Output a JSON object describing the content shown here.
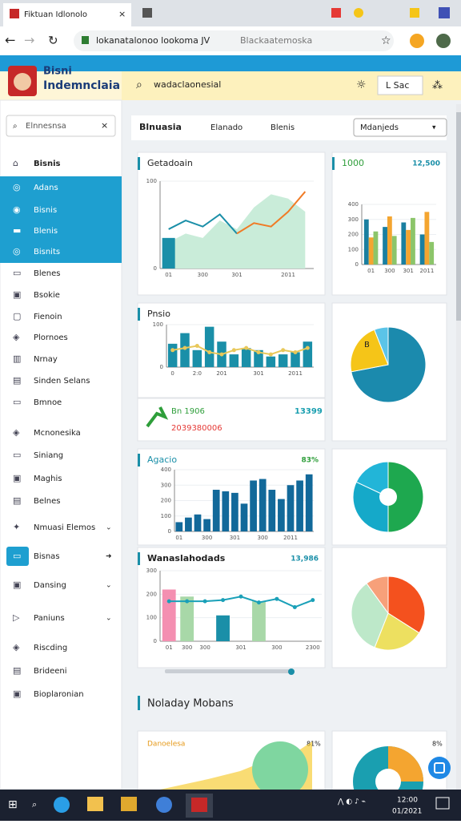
{
  "browser": {
    "tab_title": "Fiktuan Idlonolo",
    "url": "lokanatalonoo lookoma JV",
    "search": "Blackaatemoska"
  },
  "header": {
    "brand_top": "Bisni",
    "brand": "Indemnclaia",
    "search": "wadaclaonesial",
    "button": "L Sac"
  },
  "sidebar": {
    "search": "Elnnesnsa",
    "items": [
      "Bisnis",
      "Adans",
      "Bisnis",
      "Blenis",
      "Bisnits",
      "Blenes",
      "Bsokie",
      "Fienoin",
      "Plornoes",
      "Nrnay",
      "Sinden Selans",
      "Bmnoe",
      "Mcnonesika",
      "Siniang",
      "Maghis",
      "Belnes",
      "Nmuasi Elemos",
      "Bisnas",
      "Dansing",
      "Paniuns",
      "Riscding",
      "Brideeni",
      "Bioplaronian"
    ]
  },
  "tabs": [
    "Blnuasia",
    "Elanado",
    "Blenis"
  ],
  "dropdown": "Mdanjeds",
  "stats": {
    "label": "Bn 1906",
    "value": "13399",
    "sub": "2039380006"
  },
  "section_title": "Noladay Mobans",
  "bottom": {
    "title": "Danoelesa",
    "value": "81%",
    "value2": "8%"
  },
  "taskbar": {
    "time": "12:00",
    "date": "01/2021"
  },
  "chart_data": [
    {
      "type": "line",
      "title": "Getadoain",
      "categories": [
        "01",
        null,
        "300",
        null,
        "301",
        null,
        null,
        "2011",
        null
      ],
      "ylim": [
        0,
        100
      ],
      "yticks": [
        0,
        100
      ],
      "series": [
        {
          "type": "area",
          "color": "#c9ecd9",
          "values": [
            30,
            40,
            35,
            55,
            45,
            70,
            85,
            80,
            65
          ]
        },
        {
          "type": "bar",
          "color": "#1a8fa8",
          "values": [
            35,
            null,
            null,
            null,
            null,
            null,
            null,
            null,
            null
          ]
        },
        {
          "type": "line",
          "color": "#1a8fa8",
          "values": [
            45,
            55,
            48,
            62,
            40,
            null,
            null,
            null,
            null
          ]
        },
        {
          "type": "line",
          "color": "#f07b26",
          "values": [
            null,
            null,
            null,
            null,
            40,
            52,
            48,
            65,
            88
          ]
        }
      ]
    },
    {
      "type": "bar",
      "title": "1000",
      "value_label": "12,500",
      "categories": [
        "01",
        "300",
        "301",
        "2011"
      ],
      "ylim": [
        0,
        400
      ],
      "yticks": [
        0,
        100,
        200,
        300,
        400
      ],
      "series": [
        {
          "color": "#1a7fa0",
          "values": [
            300,
            250,
            280,
            200
          ]
        },
        {
          "color": "#f4a530",
          "values": [
            180,
            320,
            230,
            350
          ]
        },
        {
          "color": "#8cc56a",
          "values": [
            220,
            190,
            310,
            150
          ]
        }
      ]
    },
    {
      "type": "bar",
      "title": "Pnsio",
      "categories": [
        "0",
        null,
        "2:0",
        null,
        "201",
        null,
        null,
        "301",
        null,
        null,
        "2011",
        null
      ],
      "ylim": [
        0,
        100
      ],
      "yticks": [
        0,
        100
      ],
      "series": [
        {
          "color": "#1a8fa8",
          "values": [
            55,
            80,
            40,
            95,
            60,
            30,
            45,
            40,
            25,
            30,
            35,
            60
          ]
        },
        {
          "type": "line",
          "color": "#e8c85a",
          "values": [
            40,
            45,
            50,
            35,
            30,
            40,
            45,
            35,
            30,
            40,
            35,
            45
          ]
        }
      ]
    },
    {
      "type": "pie",
      "annotation": "B",
      "values": [
        72,
        22,
        6
      ],
      "colors": [
        "#1b8aad",
        "#f5c518",
        "#5bc4e8"
      ]
    },
    {
      "type": "bar",
      "title": "Agacio",
      "value_label": "83%",
      "categories": [
        "01",
        null,
        null,
        "300",
        null,
        null,
        "301",
        null,
        null,
        "300",
        null,
        null,
        "2011",
        null,
        null
      ],
      "ylim": [
        0,
        400
      ],
      "yticks": [
        0,
        100,
        200,
        300,
        400
      ],
      "series": [
        {
          "color": "#12699a",
          "values": [
            60,
            90,
            110,
            80,
            270,
            260,
            250,
            180,
            330,
            340,
            270,
            210,
            300,
            330,
            370
          ]
        }
      ]
    },
    {
      "type": "pie",
      "donut": true,
      "values": [
        50,
        32,
        18
      ],
      "colors": [
        "#1ea84f",
        "#15a9c9",
        "#22b5d8"
      ]
    },
    {
      "type": "bar",
      "title": "Wanaslahodads",
      "value_label": "13,986",
      "categories": [
        "01",
        "300",
        "300",
        null,
        "301",
        null,
        "300",
        null,
        "2300"
      ],
      "ylim": [
        0,
        300
      ],
      "yticks": [
        0,
        100,
        200,
        300
      ],
      "series": [
        {
          "color": "#a8d8a8",
          "colors": [
            "#f48fb1",
            "#a8d8a8",
            "#1a8fa8",
            "#1a8fa8",
            "#a8d8a8",
            "#a8d8a8",
            "#1a8fa8",
            "#1a8fa8",
            "#a8d8a8"
          ],
          "values": [
            220,
            190,
            null,
            110,
            null,
            170,
            null,
            null,
            null
          ]
        },
        {
          "type": "line",
          "color": "#1aa0b8",
          "values": [
            170,
            170,
            170,
            175,
            190,
            165,
            180,
            145,
            175
          ]
        }
      ]
    },
    {
      "type": "pie",
      "values": [
        34,
        22,
        34,
        10
      ],
      "colors": [
        "#f4511e",
        "#ede060",
        "#bde8c9",
        "#f7a07a"
      ]
    }
  ]
}
